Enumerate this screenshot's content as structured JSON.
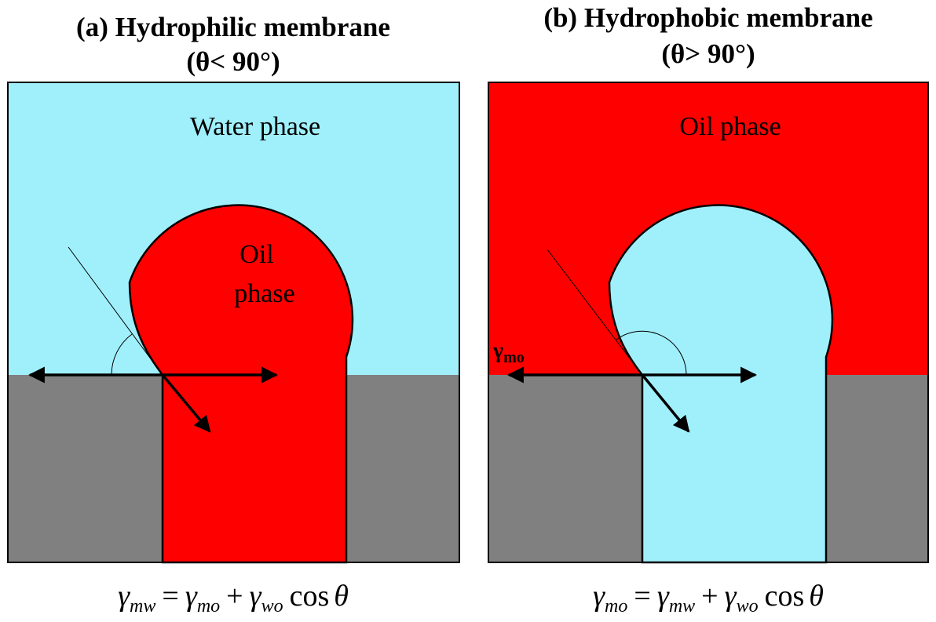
{
  "panels": [
    {
      "title": "(a) Hydrophilic membrane",
      "condition": "(θ< 90°)",
      "top_phase": "Water phase",
      "drop_phase": [
        "Oil",
        "phase"
      ],
      "equation": [
        {
          "symbol": "γ",
          "sub": "mw"
        },
        {
          "op": "="
        },
        {
          "symbol": "γ",
          "sub": "mo"
        },
        {
          "op": "+"
        },
        {
          "symbol": "γ",
          "sub": "wo"
        },
        {
          "op": "cos"
        },
        {
          "symbol": "θ"
        }
      ]
    },
    {
      "title": "(b) Hydrophobic membrane",
      "condition": "(θ> 90°)",
      "top_phase": "Oil phase",
      "force_label": {
        "symbol": "γ",
        "sub": "mo"
      },
      "equation": [
        {
          "symbol": "γ",
          "sub": "mo"
        },
        {
          "op": "="
        },
        {
          "symbol": "γ",
          "sub": "mw"
        },
        {
          "op": "+"
        },
        {
          "symbol": "γ",
          "sub": "wo"
        },
        {
          "op": "cos"
        },
        {
          "symbol": "θ"
        }
      ]
    }
  ]
}
